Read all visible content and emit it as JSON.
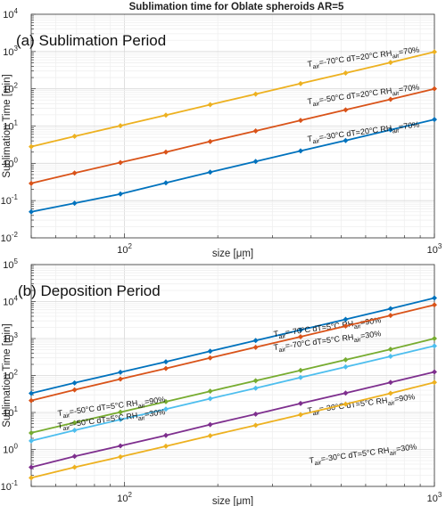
{
  "figure_title": "Sublimation time for Oblate spheroids  AR=5",
  "chart_data": [
    {
      "type": "line",
      "panel_label": "(a) Sublimation Period",
      "xlabel": "size [μm]",
      "ylabel": "Sublimation Time [min]",
      "xscale": "log",
      "yscale": "log",
      "xlim": [
        50,
        1000
      ],
      "ylim": [
        0.01,
        10000
      ],
      "x_ticks": [
        {
          "value": 100,
          "base": "10",
          "exp": "2"
        },
        {
          "value": 1000,
          "base": "10",
          "exp": "3"
        }
      ],
      "y_ticks": [
        {
          "value": 0.01,
          "base": "10",
          "exp": "-2"
        },
        {
          "value": 0.1,
          "base": "10",
          "exp": "-1"
        },
        {
          "value": 1,
          "base": "10",
          "exp": "0"
        },
        {
          "value": 10,
          "base": "10",
          "exp": "1"
        },
        {
          "value": 100,
          "base": "10",
          "exp": "2"
        },
        {
          "value": 1000,
          "base": "10",
          "exp": "3"
        },
        {
          "value": 10000,
          "base": "10",
          "exp": "4"
        }
      ],
      "grid": true,
      "x": [
        50,
        69,
        97,
        136,
        189,
        265,
        370,
        517,
        722,
        1000
      ],
      "series": [
        {
          "color": "#EDB120",
          "label_parts": {
            "t": "T",
            "t_sub": "air",
            "rest": "=-70°C  dT=20°C  RH",
            "rh_sub": "air",
            "end": "=70%"
          },
          "values": [
            2.8,
            5.3,
            10.2,
            19.6,
            37.5,
            72,
            138,
            265,
            508,
            975
          ]
        },
        {
          "color": "#D95319",
          "label_parts": {
            "t": "T",
            "t_sub": "air",
            "rest": "=-50°C  dT=20°C  RH",
            "rh_sub": "air",
            "end": "=70%"
          },
          "values": [
            0.29,
            0.55,
            1.05,
            2.0,
            3.85,
            7.4,
            14.2,
            27.2,
            52,
            100
          ]
        },
        {
          "color": "#0072BD",
          "label_parts": {
            "t": "T",
            "t_sub": "air",
            "rest": "=-30°C  dT=20°C  RH",
            "rh_sub": "air",
            "end": "=70%"
          },
          "values": [
            0.05,
            0.085,
            0.15,
            0.3,
            0.58,
            1.12,
            2.15,
            4.1,
            7.9,
            15
          ]
        }
      ]
    },
    {
      "type": "line",
      "panel_label": "(b) Deposition Period",
      "xlabel": "size [μm]",
      "ylabel": "Sublimation Time [min]",
      "xscale": "log",
      "yscale": "log",
      "xlim": [
        50,
        1000
      ],
      "ylim": [
        0.1,
        100000
      ],
      "x_ticks": [
        {
          "value": 100,
          "base": "10",
          "exp": "2"
        },
        {
          "value": 1000,
          "base": "10",
          "exp": "3"
        }
      ],
      "y_ticks": [
        {
          "value": 0.1,
          "base": "10",
          "exp": "-1"
        },
        {
          "value": 1,
          "base": "10",
          "exp": "0"
        },
        {
          "value": 10,
          "base": "10",
          "exp": "1"
        },
        {
          "value": 100,
          "base": "10",
          "exp": "2"
        },
        {
          "value": 1000,
          "base": "10",
          "exp": "3"
        },
        {
          "value": 10000,
          "base": "10",
          "exp": "4"
        },
        {
          "value": 100000,
          "base": "10",
          "exp": "5"
        }
      ],
      "grid": true,
      "x": [
        50,
        69,
        97,
        136,
        189,
        265,
        370,
        517,
        722,
        1000
      ],
      "series": [
        {
          "color": "#0072BD",
          "label_parts": {
            "t": "T",
            "t_sub": "air",
            "rest": "=-70°C  dT=5°C  RH",
            "rh_sub": "air",
            "end": "=90%"
          },
          "values": [
            33,
            63,
            122,
            235,
            455,
            880,
            1700,
            3300,
            6400,
            12500
          ]
        },
        {
          "color": "#D95319",
          "label_parts": {
            "t": "T",
            "t_sub": "air",
            "rest": "=-70°C  dT=5°C  RH",
            "rh_sub": "air",
            "end": "=30%"
          },
          "values": [
            21,
            41,
            80,
            155,
            300,
            580,
            1120,
            2170,
            4200,
            8100
          ]
        },
        {
          "color": "#77AC30",
          "label_parts": {
            "t": "T",
            "t_sub": "air",
            "rest": "=-50°C  dT=5°C  RH",
            "rh_sub": "air",
            "end": "=90%"
          },
          "values": [
            2.8,
            5.3,
            10.2,
            19.6,
            37.5,
            72,
            138,
            265,
            510,
            1000
          ]
        },
        {
          "color": "#4DBEEE",
          "label_parts": {
            "t": "T",
            "t_sub": "air",
            "rest": "=-50°C  dT=5°C  RH",
            "rh_sub": "air",
            "end": "=30%"
          },
          "values": [
            1.7,
            3.3,
            6.4,
            12.3,
            23.6,
            45.5,
            88,
            170,
            330,
            630
          ]
        },
        {
          "color": "#7E2F8E",
          "label_parts": {
            "t": "T",
            "t_sub": "air",
            "rest": "=-30°C  dT=5°C  RH",
            "rh_sub": "air",
            "end": "=90%"
          },
          "values": [
            0.33,
            0.65,
            1.25,
            2.4,
            4.7,
            9.0,
            17.5,
            33.5,
            65,
            125
          ]
        },
        {
          "color": "#EDB120",
          "label_parts": {
            "t": "T",
            "t_sub": "air",
            "rest": "=-30°C  dT=5°C  RH",
            "rh_sub": "air",
            "end": "=30%"
          },
          "values": [
            0.17,
            0.33,
            0.63,
            1.22,
            2.35,
            4.5,
            8.7,
            16.8,
            33,
            65
          ]
        }
      ]
    }
  ]
}
